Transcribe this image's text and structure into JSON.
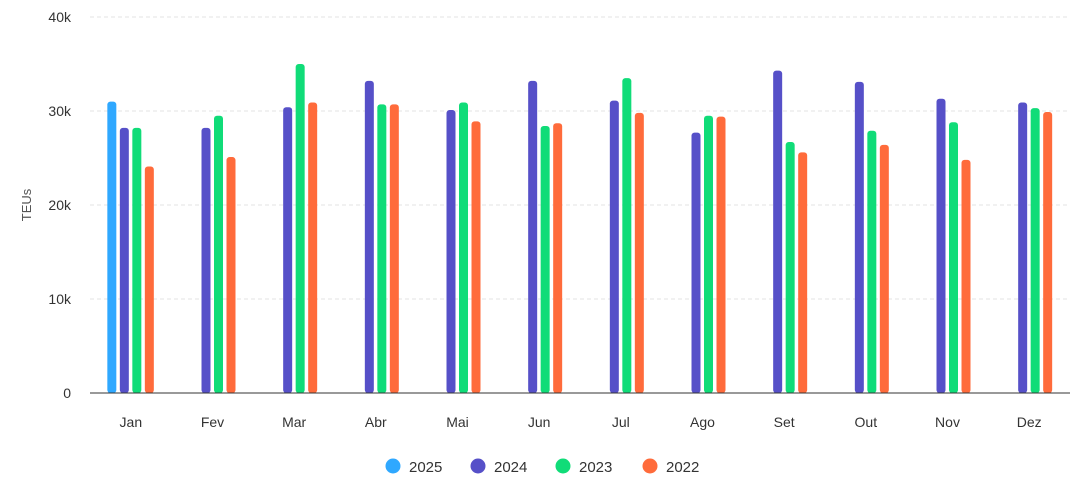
{
  "chart_data": {
    "type": "bar",
    "title": "",
    "xlabel": "",
    "ylabel": "TEUs",
    "ylim": [
      0,
      40000
    ],
    "yticks": [
      0,
      10000,
      20000,
      30000,
      40000
    ],
    "ytick_labels": [
      "0",
      "10k",
      "20k",
      "30k",
      "40k"
    ],
    "grid": true,
    "legend_position": "bottom",
    "categories": [
      "Jan",
      "Fev",
      "Mar",
      "Abr",
      "Mai",
      "Jun",
      "Jul",
      "Ago",
      "Set",
      "Out",
      "Nov",
      "Dez"
    ],
    "series": [
      {
        "name": "2025",
        "color": "#2FA8FF",
        "values": [
          31000,
          null,
          null,
          null,
          null,
          null,
          null,
          null,
          null,
          null,
          null,
          null
        ]
      },
      {
        "name": "2024",
        "color": "#5650C8",
        "values": [
          28200,
          28200,
          30400,
          33200,
          30100,
          33200,
          31100,
          27700,
          34300,
          33100,
          31300,
          30900
        ]
      },
      {
        "name": "2023",
        "color": "#10DC78",
        "values": [
          28200,
          29500,
          35000,
          30700,
          30900,
          28400,
          33500,
          29500,
          26700,
          27900,
          28800,
          30300
        ]
      },
      {
        "name": "2022",
        "color": "#FF6B3B",
        "values": [
          24100,
          25100,
          30900,
          30700,
          28900,
          28700,
          29800,
          29400,
          25600,
          26400,
          24800,
          29900
        ]
      }
    ]
  }
}
